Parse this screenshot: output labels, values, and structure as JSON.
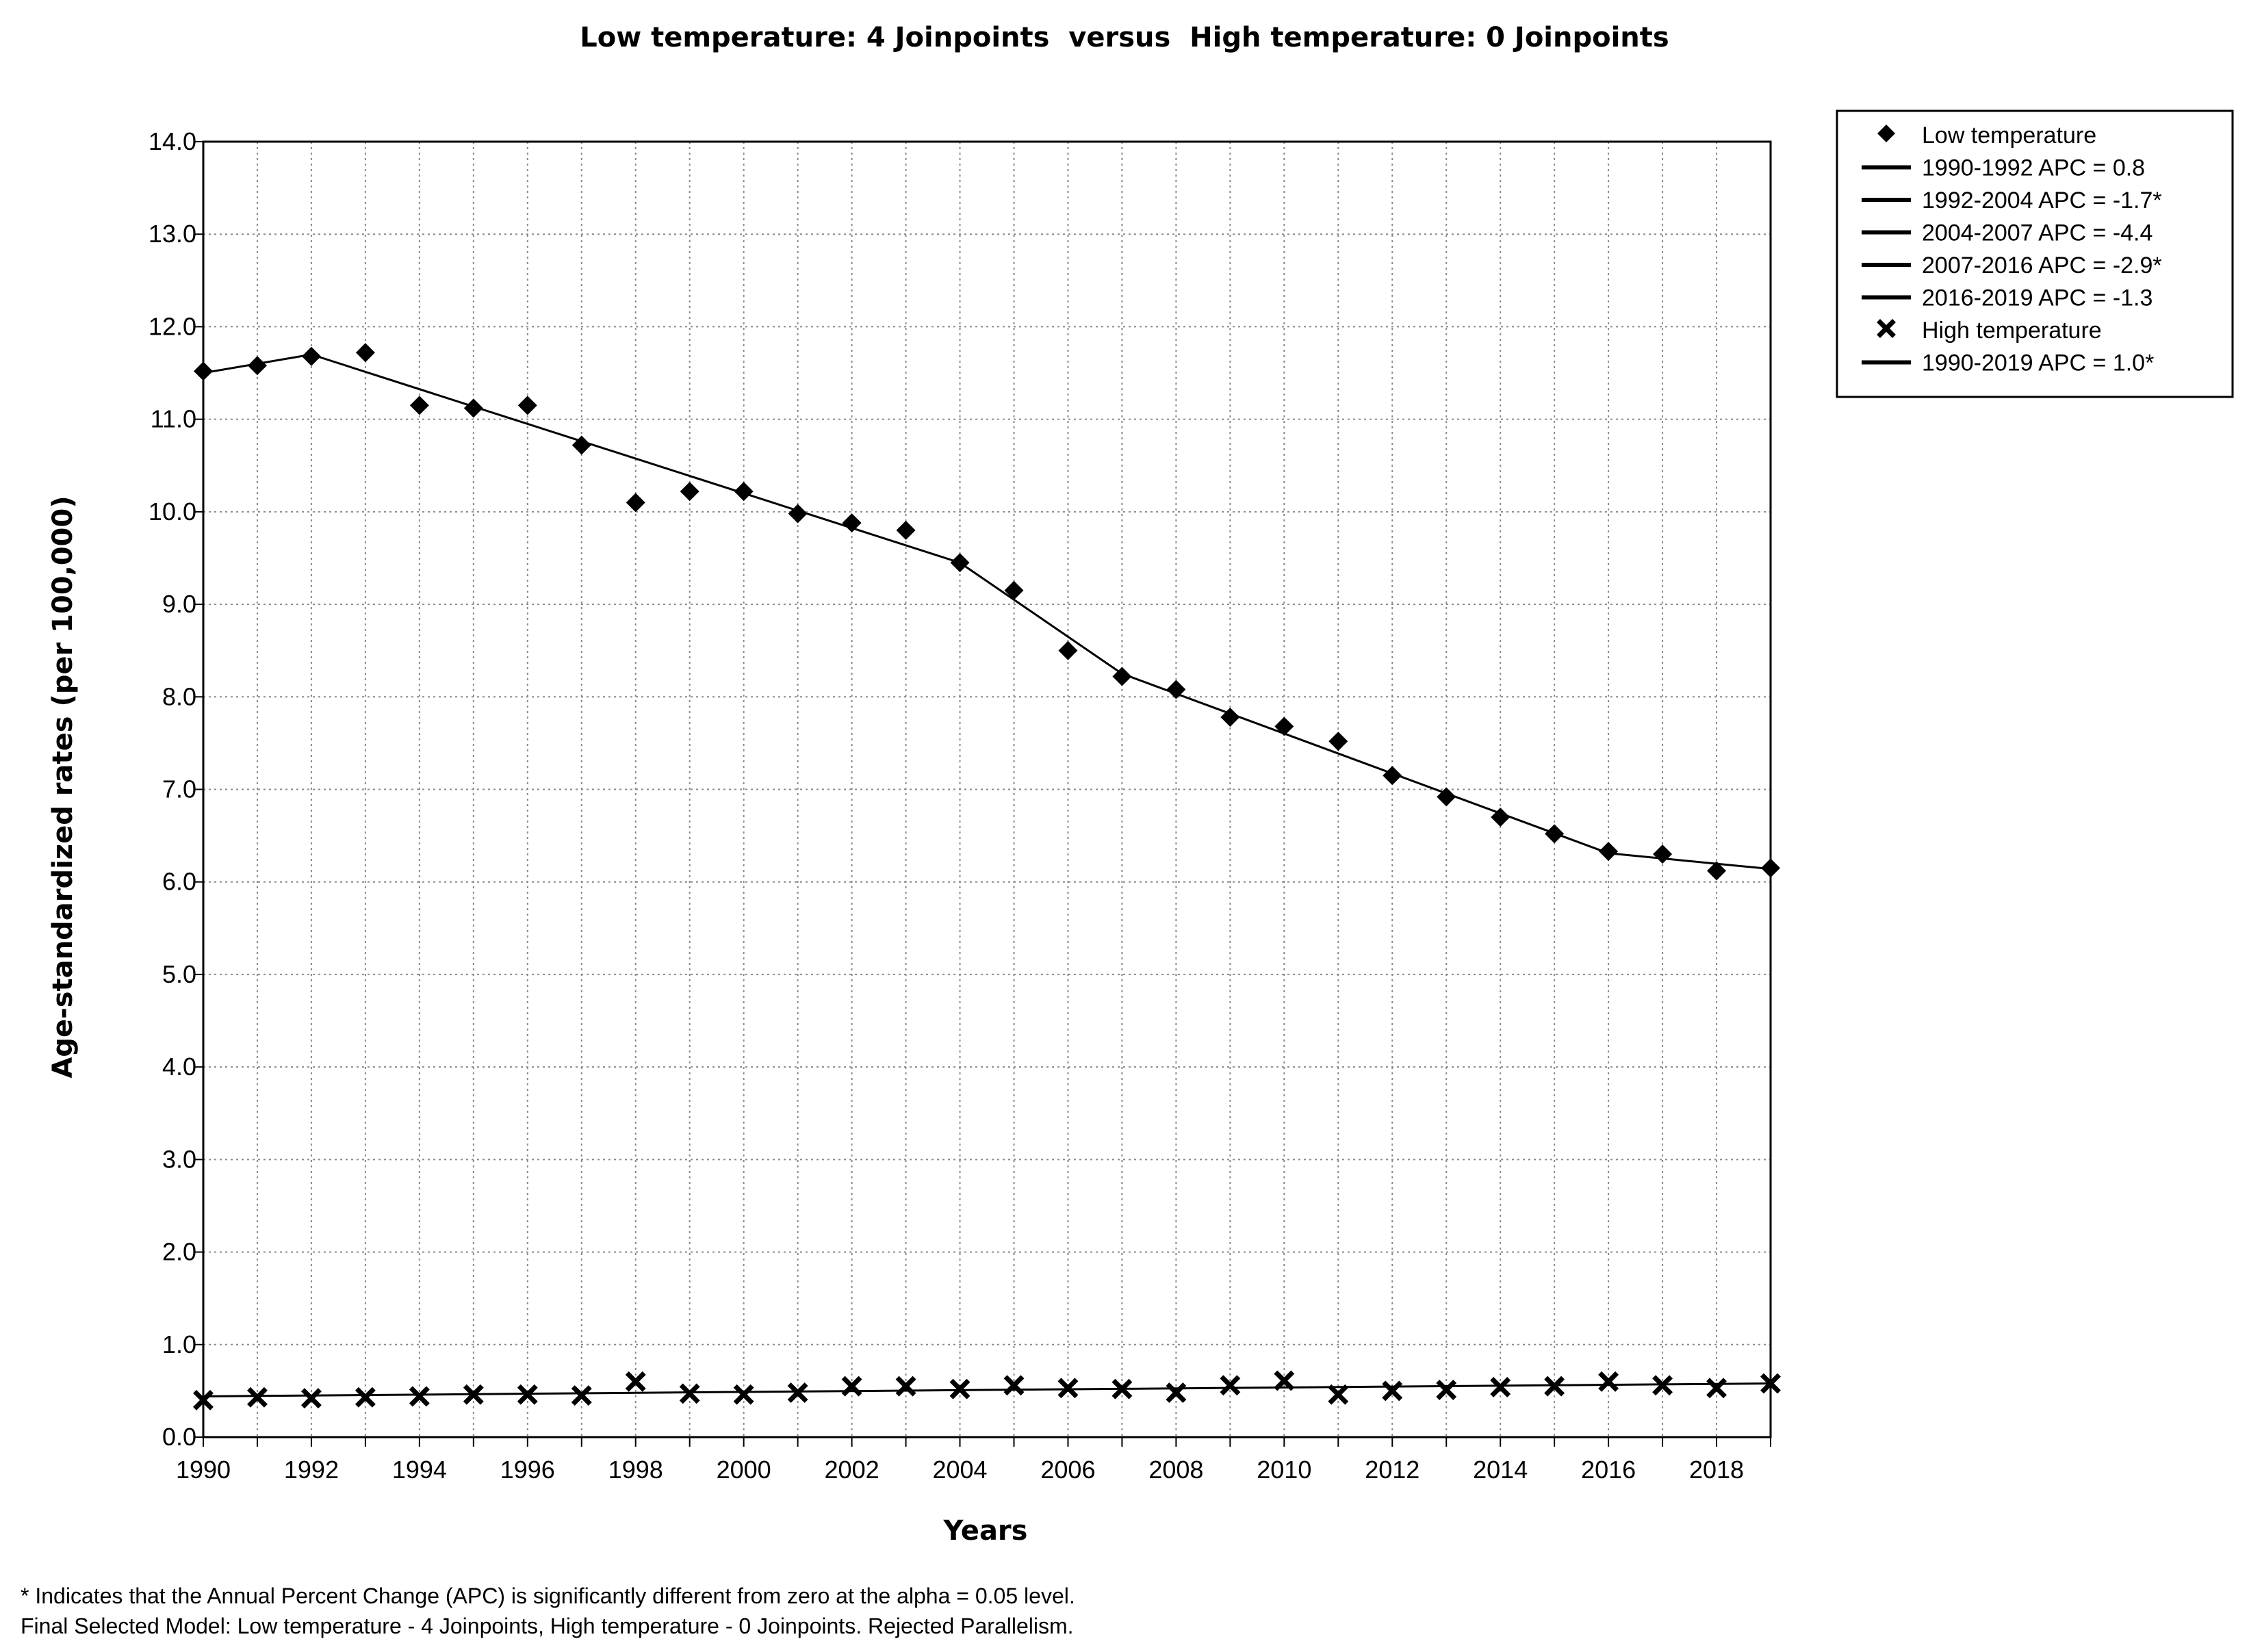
{
  "chart_data": {
    "type": "scatter",
    "title": "Low temperature: 4 Joinpoints  versus  High temperature: 0 Joinpoints",
    "xlabel": "Years",
    "ylabel": "Age-standardized rates (per 100,000)",
    "xlim": [
      1990,
      2019
    ],
    "ylim": [
      0,
      14
    ],
    "grid": true,
    "legend_position": "top-right",
    "x_ticks": [
      "1990",
      "1992",
      "1994",
      "1996",
      "1998",
      "2000",
      "2002",
      "2004",
      "2006",
      "2008",
      "2010",
      "2012",
      "2014",
      "2016",
      "2018"
    ],
    "y_ticks": [
      "0.0",
      "1.0",
      "2.0",
      "3.0",
      "4.0",
      "5.0",
      "6.0",
      "7.0",
      "8.0",
      "9.0",
      "10.0",
      "11.0",
      "12.0",
      "13.0",
      "14.0"
    ],
    "x": [
      1990,
      1991,
      1992,
      1993,
      1994,
      1995,
      1996,
      1997,
      1998,
      1999,
      2000,
      2001,
      2002,
      2003,
      2004,
      2005,
      2006,
      2007,
      2008,
      2009,
      2010,
      2011,
      2012,
      2013,
      2014,
      2015,
      2016,
      2017,
      2018,
      2019
    ],
    "series": [
      {
        "name": "Low temperature",
        "marker": "diamond",
        "values": [
          11.52,
          11.58,
          11.68,
          11.72,
          11.15,
          11.12,
          11.15,
          10.72,
          10.1,
          10.22,
          10.22,
          9.98,
          9.88,
          9.8,
          9.45,
          9.15,
          8.5,
          8.22,
          8.08,
          7.78,
          7.68,
          7.52,
          7.15,
          6.92,
          6.7,
          6.52,
          6.33,
          6.3,
          6.12,
          6.15
        ],
        "fit_joinpoints": {
          "x": [
            1990,
            1992,
            2004,
            2007,
            2016,
            2019
          ],
          "y": [
            11.5,
            11.7,
            9.45,
            8.25,
            6.31,
            6.14
          ]
        }
      },
      {
        "name": "High temperature",
        "marker": "x",
        "values": [
          0.4,
          0.43,
          0.42,
          0.43,
          0.44,
          0.46,
          0.46,
          0.45,
          0.6,
          0.47,
          0.46,
          0.48,
          0.55,
          0.55,
          0.52,
          0.56,
          0.53,
          0.52,
          0.48,
          0.56,
          0.61,
          0.46,
          0.5,
          0.51,
          0.54,
          0.55,
          0.6,
          0.56,
          0.53,
          0.58
        ],
        "fit_joinpoints": {
          "x": [
            1990,
            2019
          ],
          "y": [
            0.44,
            0.58
          ]
        }
      }
    ],
    "legend": [
      {
        "marker": "diamond",
        "label": "Low temperature"
      },
      {
        "marker": "line",
        "label": "1990-1992 APC  =  0.8"
      },
      {
        "marker": "line",
        "label": "1992-2004 APC  = -1.7*"
      },
      {
        "marker": "line",
        "label": "2004-2007 APC  = -4.4"
      },
      {
        "marker": "line",
        "label": "2007-2016 APC  = -2.9*"
      },
      {
        "marker": "line",
        "label": "2016-2019 APC  = -1.3"
      },
      {
        "marker": "x",
        "label": "High temperature"
      },
      {
        "marker": "line",
        "label": "1990-2019 APC  = 1.0*"
      }
    ],
    "footnotes": [
      "* Indicates that the Annual Percent Change (APC) is significantly different from zero at the alpha = 0.05 level.",
      "Final Selected Model: Low temperature - 4 Joinpoints, High temperature - 0 Joinpoints. Rejected Parallelism."
    ]
  },
  "colors": {
    "ink": "#000000",
    "grid": "#7f7f7f",
    "background": "#ffffff"
  }
}
